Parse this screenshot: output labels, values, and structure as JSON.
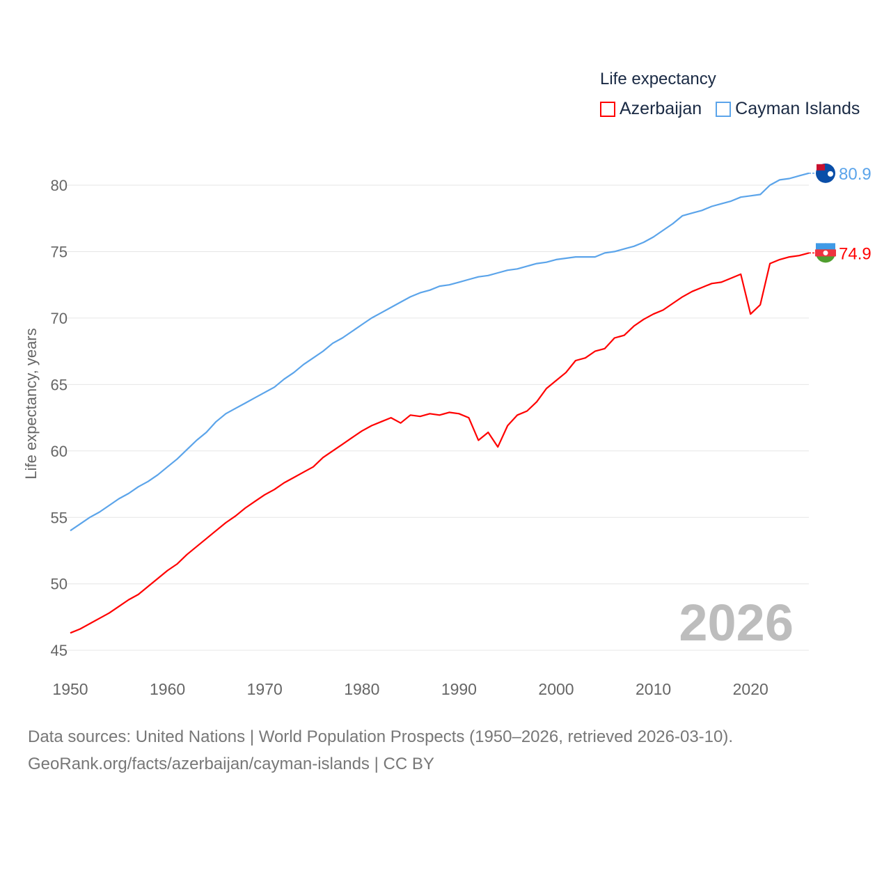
{
  "chart_data": {
    "type": "line",
    "title": "Life expectancy",
    "xlabel": "",
    "ylabel": "Life expectancy, years",
    "xlim": [
      1950,
      2026
    ],
    "ylim": [
      44.5,
      83
    ],
    "x_ticks": [
      "1950",
      "1960",
      "1970",
      "1980",
      "1990",
      "2000",
      "2010",
      "2020"
    ],
    "y_ticks": [
      "45",
      "50",
      "55",
      "60",
      "65",
      "70",
      "75",
      "80"
    ],
    "grid": true,
    "legend_position": "top-right",
    "year_label": "2026",
    "x": [
      1950,
      1951,
      1952,
      1953,
      1954,
      1955,
      1956,
      1957,
      1958,
      1959,
      1960,
      1961,
      1962,
      1963,
      1964,
      1965,
      1966,
      1967,
      1968,
      1969,
      1970,
      1971,
      1972,
      1973,
      1974,
      1975,
      1976,
      1977,
      1978,
      1979,
      1980,
      1981,
      1982,
      1983,
      1984,
      1985,
      1986,
      1987,
      1988,
      1989,
      1990,
      1991,
      1992,
      1993,
      1994,
      1995,
      1996,
      1997,
      1998,
      1999,
      2000,
      2001,
      2002,
      2003,
      2004,
      2005,
      2006,
      2007,
      2008,
      2009,
      2010,
      2011,
      2012,
      2013,
      2014,
      2015,
      2016,
      2017,
      2018,
      2019,
      2020,
      2021,
      2022,
      2023,
      2024,
      2025,
      2026
    ],
    "series": [
      {
        "name": "Azerbaijan",
        "color": "#ff0000",
        "end_label": "74.9",
        "values": [
          46.3,
          46.6,
          47.0,
          47.4,
          47.8,
          48.3,
          48.8,
          49.2,
          49.8,
          50.4,
          51.0,
          51.5,
          52.2,
          52.8,
          53.4,
          54.0,
          54.6,
          55.1,
          55.7,
          56.2,
          56.7,
          57.1,
          57.6,
          58.0,
          58.4,
          58.8,
          59.5,
          60.0,
          60.5,
          61.0,
          61.5,
          61.9,
          62.2,
          62.5,
          62.1,
          62.7,
          62.6,
          62.8,
          62.7,
          62.9,
          62.8,
          62.5,
          60.8,
          61.4,
          60.3,
          61.9,
          62.7,
          63.0,
          63.7,
          64.7,
          65.3,
          65.9,
          66.8,
          67.0,
          67.5,
          67.7,
          68.5,
          68.7,
          69.4,
          69.9,
          70.3,
          70.6,
          71.1,
          71.6,
          72.0,
          72.3,
          72.6,
          72.7,
          73.0,
          73.3,
          70.3,
          71.0,
          74.1,
          74.4,
          74.6,
          74.7,
          74.9
        ]
      },
      {
        "name": "Cayman Islands",
        "color": "#5ba4ea",
        "end_label": "80.9",
        "values": [
          54.0,
          54.5,
          55.0,
          55.4,
          55.9,
          56.4,
          56.8,
          57.3,
          57.7,
          58.2,
          58.8,
          59.4,
          60.1,
          60.8,
          61.4,
          62.2,
          62.8,
          63.2,
          63.6,
          64.0,
          64.4,
          64.8,
          65.4,
          65.9,
          66.5,
          67.0,
          67.5,
          68.1,
          68.5,
          69.0,
          69.5,
          70.0,
          70.4,
          70.8,
          71.2,
          71.6,
          71.9,
          72.1,
          72.4,
          72.5,
          72.7,
          72.9,
          73.1,
          73.2,
          73.4,
          73.6,
          73.7,
          73.9,
          74.1,
          74.2,
          74.4,
          74.5,
          74.6,
          74.6,
          74.6,
          74.9,
          75.0,
          75.2,
          75.4,
          75.7,
          76.1,
          76.6,
          77.1,
          77.7,
          77.9,
          78.1,
          78.4,
          78.6,
          78.8,
          79.1,
          79.2,
          79.3,
          80.0,
          80.4,
          80.5,
          80.7,
          80.9
        ]
      }
    ]
  },
  "footer": {
    "line1": "Data sources: United Nations | World Population Prospects (1950–2026, retrieved 2026-03-10).",
    "line2": "GeoRank.org/facts/azerbaijan/cayman-islands | CC BY"
  }
}
